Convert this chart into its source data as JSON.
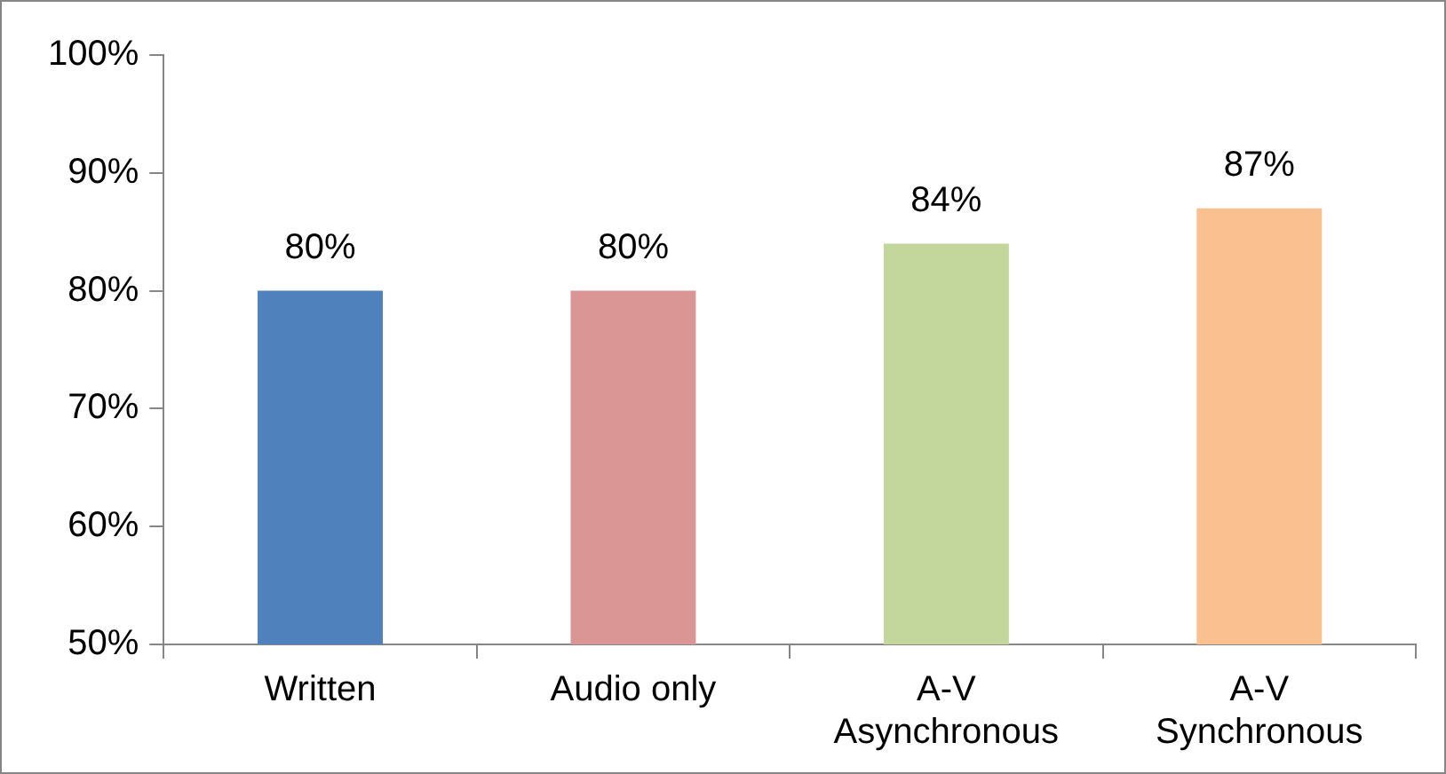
{
  "chart_data": {
    "type": "bar",
    "categories": [
      "Written",
      "Audio only",
      "A-V Asynchronous",
      "A-V Synchronous"
    ],
    "values": [
      80,
      80,
      84,
      87
    ],
    "colors": [
      "#4f81bd",
      "#d99694",
      "#c3d69b",
      "#fac090"
    ],
    "value_labels": [
      "80%",
      "80%",
      "84%",
      "87%"
    ],
    "ylim": [
      50,
      100
    ],
    "yticks": [
      {
        "value": 50,
        "label": "50%"
      },
      {
        "value": 60,
        "label": "60%"
      },
      {
        "value": 70,
        "label": "70%"
      },
      {
        "value": 80,
        "label": "80%"
      },
      {
        "value": 90,
        "label": "90%"
      },
      {
        "value": 100,
        "label": "100%"
      }
    ],
    "grid": false,
    "legend": false
  }
}
